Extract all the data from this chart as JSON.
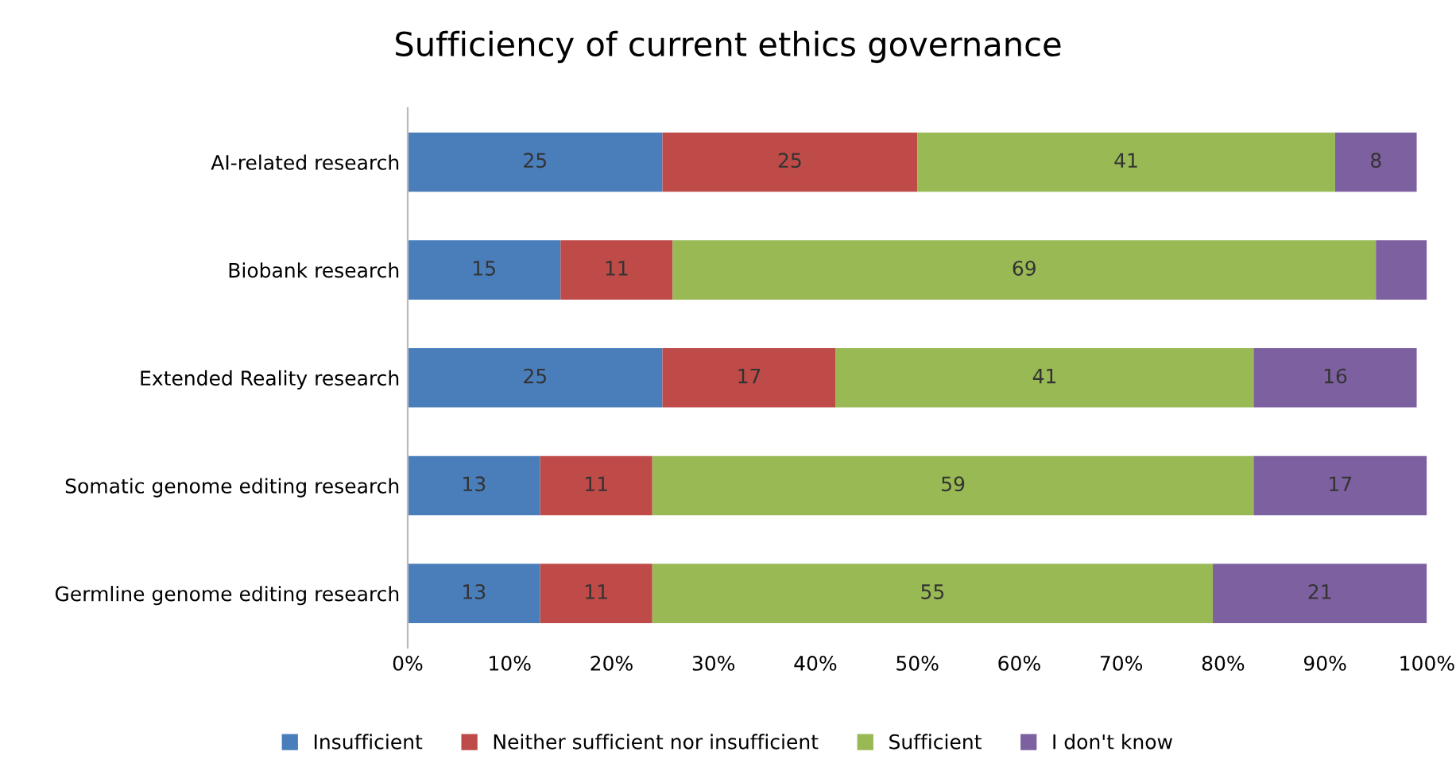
{
  "chart_data": {
    "type": "bar",
    "orientation": "horizontal",
    "stacked": true,
    "title": "Sufficiency of current ethics governance",
    "categories": [
      "AI-related research",
      "Biobank research",
      "Extended Reality research",
      "Somatic genome editing research",
      "Germline genome editing research"
    ],
    "series": [
      {
        "name": "Insufficient",
        "color": "#4a7ebb",
        "values": [
          25,
          15,
          25,
          13,
          13
        ],
        "value_labels": [
          "25",
          "15",
          "25",
          "13",
          "13"
        ]
      },
      {
        "name": "Neither sufficient nor insufficient",
        "color": "#be4b48",
        "values": [
          25,
          11,
          17,
          11,
          11
        ],
        "value_labels": [
          "25",
          "11",
          "17",
          "11",
          "11"
        ]
      },
      {
        "name": "Sufficient",
        "color": "#98b954",
        "values": [
          41,
          69,
          41,
          59,
          55
        ],
        "value_labels": [
          "41",
          "69",
          "41",
          "59",
          "55"
        ]
      },
      {
        "name": "I don't know",
        "color": "#7d60a0",
        "values": [
          8,
          5,
          16,
          17,
          21
        ],
        "value_labels": [
          "8",
          null,
          "16",
          "17",
          "21"
        ]
      }
    ],
    "xlim": [
      0,
      100
    ],
    "xticks": [
      {
        "value": 0,
        "label": "0%"
      },
      {
        "value": 10,
        "label": "10%"
      },
      {
        "value": 20,
        "label": "20%"
      },
      {
        "value": 30,
        "label": "30%"
      },
      {
        "value": 40,
        "label": "40%"
      },
      {
        "value": 50,
        "label": "50%"
      },
      {
        "value": 60,
        "label": "60%"
      },
      {
        "value": 70,
        "label": "70%"
      },
      {
        "value": 80,
        "label": "80%"
      },
      {
        "value": 90,
        "label": "90%"
      },
      {
        "value": 100,
        "label": "100%"
      }
    ],
    "grid": false,
    "legend": "bottom"
  }
}
